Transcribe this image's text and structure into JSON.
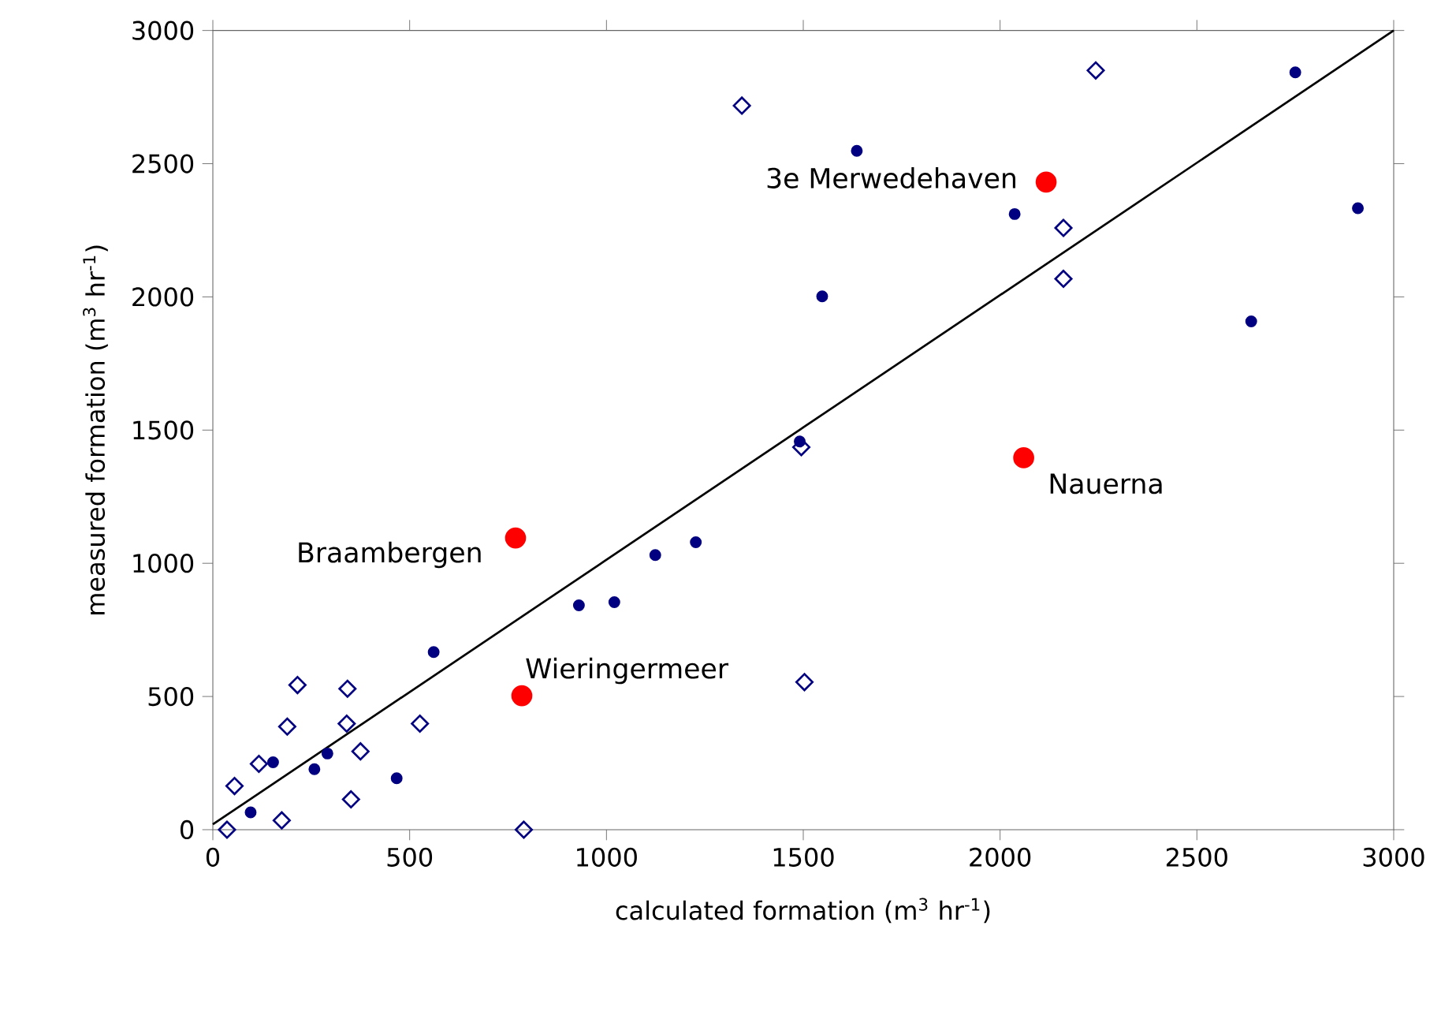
{
  "chart_data": {
    "type": "scatter",
    "xlabel": "calculated formation (m$^{3}$ hr$^{-1}$)",
    "ylabel": "measured formation (m$^{3}$ hr$^{-1}$)",
    "xlim": [
      0,
      3000
    ],
    "ylim": [
      0,
      3000
    ],
    "xticks": [
      0,
      500,
      1000,
      1500,
      2000,
      2500,
      3000
    ],
    "yticks": [
      0,
      500,
      1000,
      1500,
      2000,
      2500,
      3000
    ],
    "grid": false,
    "series": [
      {
        "marker": "circle",
        "color": "#000080",
        "x": [
          96,
          153,
          258,
          291,
          467,
          561,
          930,
          1020,
          1124,
          1227,
          1491,
          1636,
          2037,
          1548,
          2750,
          2909,
          2638
        ],
        "values": [
          65,
          253,
          227,
          286,
          193,
          667,
          842,
          854,
          1031,
          1079,
          1457,
          2548,
          2311,
          2002,
          2843,
          2333,
          1908
        ]
      },
      {
        "marker": "diamond",
        "color": "#000080",
        "x": [
          36,
          55,
          117,
          189,
          215,
          175,
          342,
          340,
          375,
          351,
          526,
          790,
          1503,
          1495,
          1344,
          2243,
          2161,
          2161
        ],
        "values": [
          0,
          164,
          247,
          387,
          543,
          35,
          529,
          398,
          294,
          114,
          398,
          0,
          554,
          1436,
          2718,
          2850,
          2259,
          2068
        ]
      },
      {
        "marker": "circle",
        "color": "#ff0000",
        "x": [
          769,
          785,
          2117,
          2060
        ],
        "values": [
          1095,
          503,
          2431,
          1396
        ]
      },
      {
        "type": "line",
        "marker": "none",
        "color": "#000000",
        "x": [
          0,
          3000
        ],
        "values": [
          20,
          3000
        ]
      }
    ],
    "annotations": [
      {
        "text": "Braambergen",
        "x": 769,
        "y": 1095
      },
      {
        "text": "Wieringermeer",
        "x": 785,
        "y": 503
      },
      {
        "text": "3e Merwedehaven",
        "x": 2117,
        "y": 2431
      },
      {
        "text": "Nauerna",
        "x": 2060,
        "y": 1396
      }
    ]
  }
}
